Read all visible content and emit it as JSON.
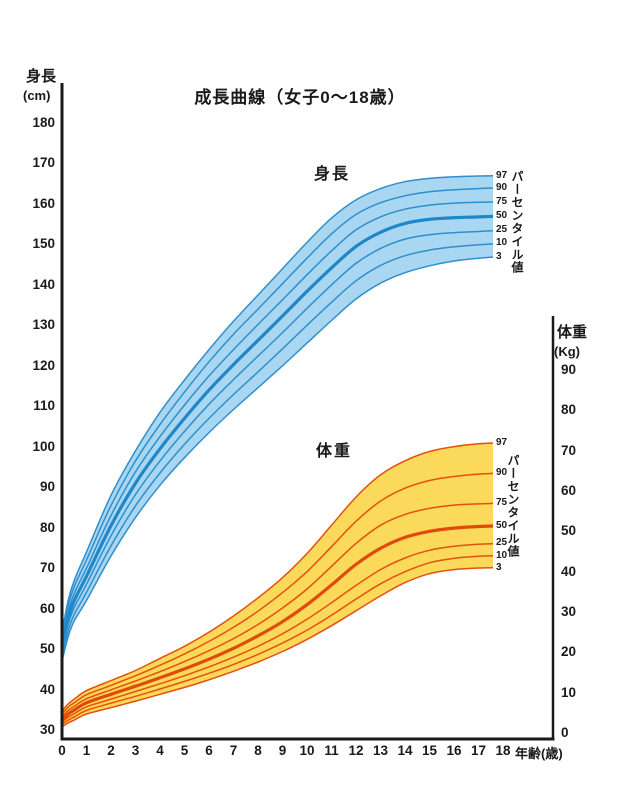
{
  "chart_data": {
    "type": "line",
    "title": "成長曲線（女子0～18歳）",
    "xlabel": "年齢(歳)",
    "x": [
      0,
      0.25,
      0.5,
      1,
      2,
      3,
      4,
      5,
      6,
      7,
      8,
      9,
      10,
      11,
      12,
      13,
      14,
      15,
      16,
      17,
      18
    ],
    "x_ticks": [
      0,
      1,
      2,
      3,
      4,
      5,
      6,
      7,
      8,
      9,
      10,
      11,
      12,
      13,
      14,
      15,
      16,
      17,
      18
    ],
    "xlim": [
      0,
      18
    ],
    "grid": false,
    "legend_position": "right-of-curves",
    "groups": [
      {
        "name": "身長",
        "axis": "left",
        "axis_label": "身長",
        "axis_unit": "(cm)",
        "ylabel": "身長 (cm)",
        "ylim": [
          30,
          185
        ],
        "y_ticks": [
          180,
          170,
          160,
          150,
          140,
          130,
          120,
          110,
          100,
          90,
          80,
          70,
          60,
          50,
          40,
          30
        ],
        "percentile_label": "パーセンタイル値",
        "band_fill": "#A9D6F0",
        "line_color": "#2E8FCC",
        "median_color": "#1F86C8",
        "series": [
          {
            "name": "97",
            "values": [
              54,
              62,
              67,
              74,
              88,
              99,
              108.5,
              116.5,
              124,
              131,
              137.5,
              144,
              150.5,
              156.5,
              161,
              163.8,
              165.5,
              166.3,
              166.7,
              166.9,
              167
            ]
          },
          {
            "name": "90",
            "values": [
              53,
              60.5,
              65.5,
              72,
              85.5,
              96.5,
              105.5,
              113.5,
              121,
              127.8,
              134,
              140.3,
              146.6,
              152.6,
              157.4,
              160.3,
              162,
              163,
              163.5,
              163.8,
              164
            ]
          },
          {
            "name": "75",
            "values": [
              51.8,
              59,
              63.8,
              70,
              83,
              93.8,
              102.5,
              110.3,
              117.5,
              124,
              130.2,
              136.3,
              142.5,
              148.4,
              153.6,
              156.8,
              158.7,
              159.7,
              160.2,
              160.4,
              160.5
            ]
          },
          {
            "name": "50",
            "values": [
              50.5,
              57.5,
              62,
              68,
              80.5,
              91,
              99.5,
              107,
              114,
              120.3,
              126.3,
              132.3,
              138.4,
              144.2,
              149.5,
              153,
              155.2,
              156.2,
              156.6,
              156.8,
              157
            ]
          },
          {
            "name": "25",
            "values": [
              49.3,
              56,
              60.3,
              66,
              78,
              88.2,
              96.5,
              103.8,
              110.5,
              116.6,
              122.4,
              128.2,
              134.2,
              140,
              145.3,
              149,
              151.3,
              152.4,
              152.9,
              153.2,
              153.5
            ]
          },
          {
            "name": "10",
            "values": [
              48.2,
              54.5,
              58.6,
              64,
              75.5,
              85.4,
              93.5,
              100.6,
              107,
              112.9,
              118.5,
              124.2,
              130,
              135.7,
              141,
              144.8,
              147.2,
              148.6,
              149.4,
              149.9,
              150.3
            ]
          },
          {
            "name": "3",
            "values": [
              47,
              53,
              57,
              62,
              73,
              82.5,
              90.5,
              97.3,
              103.5,
              109.2,
              114.6,
              120,
              125.6,
              131.2,
              136.5,
              140.4,
              143,
              144.7,
              145.9,
              146.6,
              147
            ]
          }
        ]
      },
      {
        "name": "体重",
        "axis": "right",
        "axis_label": "体重",
        "axis_unit": "(Kg)",
        "ylabel": "体重 (Kg)",
        "ylim": [
          0,
          93
        ],
        "y_ticks": [
          90,
          80,
          70,
          60,
          50,
          40,
          30,
          20,
          10,
          0
        ],
        "percentile_label": "パーセンタイル値",
        "band_fill": "#FBD95A",
        "line_color": "#E5500E",
        "median_color": "#E04A0A",
        "series": [
          {
            "name": "97",
            "values": [
              5.5,
              7.2,
              8.4,
              10.5,
              13,
              15.5,
              18.5,
              21.5,
              25,
              29,
              33.5,
              38.5,
              44.5,
              51.5,
              58.5,
              64,
              67.5,
              69.8,
              71,
              71.7,
              72
            ]
          },
          {
            "name": "90",
            "values": [
              4.8,
              6.4,
              7.5,
              9.5,
              11.8,
              14.2,
              16.8,
              19.6,
              22.7,
              26.2,
              30.2,
              34.8,
              40,
              46.2,
              52.5,
              57.5,
              60.7,
              62.6,
              63.6,
              64.2,
              64.5
            ]
          },
          {
            "name": "75",
            "values": [
              4.1,
              5.6,
              6.6,
              8.5,
              10.7,
              12.9,
              15.2,
              17.7,
              20.4,
              23.4,
              26.9,
              31,
              35.7,
              41.3,
              47,
              51.5,
              54.2,
              55.7,
              56.5,
              56.8,
              57
            ]
          },
          {
            "name": "50",
            "values": [
              3.3,
              4.7,
              5.7,
              7.5,
              9.6,
              11.6,
              13.7,
              15.9,
              18.3,
              21,
              24.1,
              27.6,
              31.8,
              36.7,
              41.8,
              45.8,
              48.5,
              50,
              50.8,
              51.2,
              51.4
            ]
          },
          {
            "name": "25",
            "values": [
              2.7,
              3.9,
              4.8,
              6.5,
              8.4,
              10.3,
              12.2,
              14.2,
              16.4,
              18.8,
              21.5,
              24.6,
              28.2,
              32.3,
              36.6,
              40.5,
              43.4,
              45.3,
              46.3,
              46.8,
              47
            ]
          },
          {
            "name": "10",
            "values": [
              2.1,
              3.2,
              4,
              5.6,
              7.4,
              9.1,
              10.9,
              12.8,
              14.8,
              17,
              19.5,
              22.3,
              25.5,
              29.2,
              33.2,
              37,
              40,
              42.2,
              43.3,
              43.8,
              44
            ]
          },
          {
            "name": "3",
            "values": [
              1.5,
              2.5,
              3.2,
              4.7,
              6.3,
              7.9,
              9.6,
              11.3,
              13.2,
              15.3,
              17.6,
              20.2,
              23.2,
              26.6,
              30.3,
              34,
              37.3,
              39.5,
              40.5,
              40.9,
              41
            ]
          }
        ]
      }
    ],
    "axis_color": "#1a1a1a"
  }
}
